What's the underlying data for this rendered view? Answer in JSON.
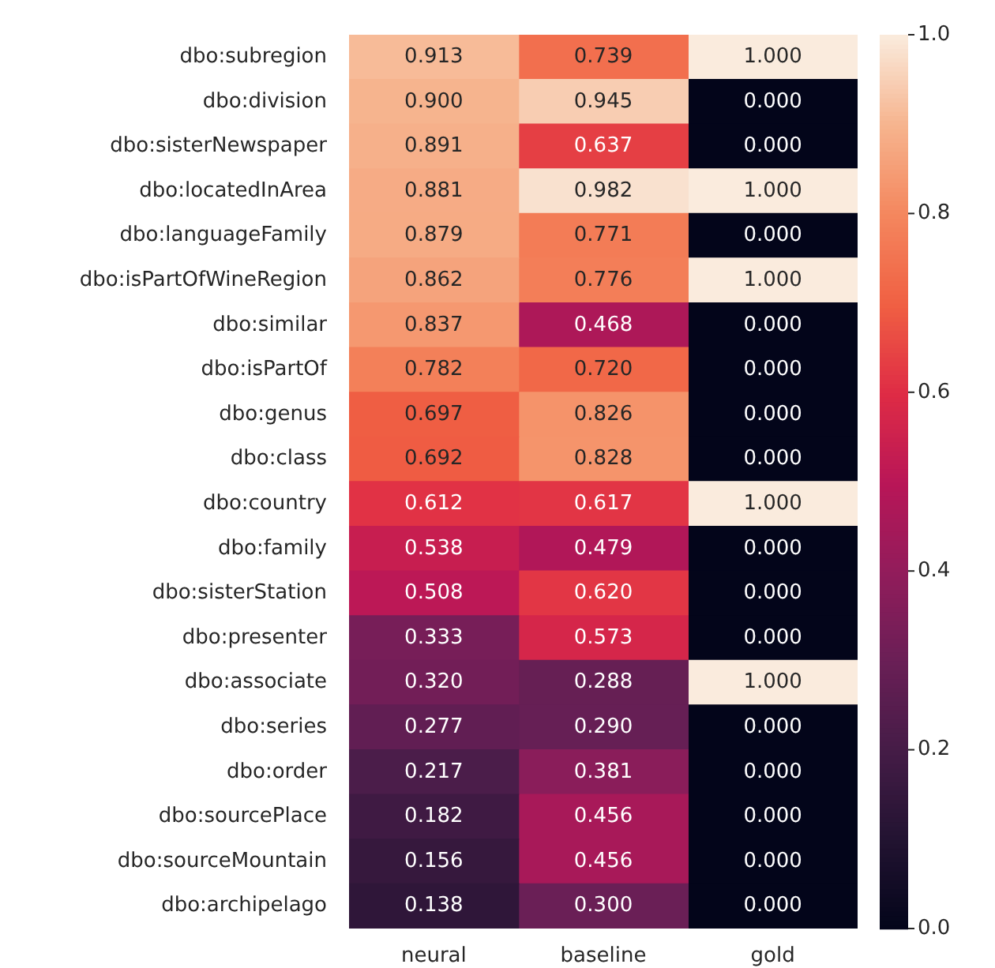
{
  "chart_data": {
    "type": "heatmap",
    "categories": [
      "neural",
      "baseline",
      "gold"
    ],
    "y_categories": [
      "dbo:subregion",
      "dbo:division",
      "dbo:sisterNewspaper",
      "dbo:locatedInArea",
      "dbo:languageFamily",
      "dbo:isPartOfWineRegion",
      "dbo:similar",
      "dbo:isPartOf",
      "dbo:genus",
      "dbo:class",
      "dbo:country",
      "dbo:family",
      "dbo:sisterStation",
      "dbo:presenter",
      "dbo:associate",
      "dbo:series",
      "dbo:order",
      "dbo:sourcePlace",
      "dbo:sourceMountain",
      "dbo:archipelago"
    ],
    "cells": [
      [
        0.913,
        0.739,
        1
      ],
      [
        0.9,
        0.945,
        0
      ],
      [
        0.891,
        0.637,
        0
      ],
      [
        0.881,
        0.982,
        1
      ],
      [
        0.879,
        0.771,
        0
      ],
      [
        0.862,
        0.776,
        1
      ],
      [
        0.837,
        0.468,
        0
      ],
      [
        0.782,
        0.72,
        0
      ],
      [
        0.697,
        0.826,
        0
      ],
      [
        0.692,
        0.828,
        0
      ],
      [
        0.612,
        0.617,
        1
      ],
      [
        0.538,
        0.479,
        0
      ],
      [
        0.508,
        0.62,
        0
      ],
      [
        0.333,
        0.573,
        0
      ],
      [
        0.32,
        0.288,
        1
      ],
      [
        0.277,
        0.29,
        0
      ],
      [
        0.217,
        0.381,
        0
      ],
      [
        0.182,
        0.456,
        0
      ],
      [
        0.156,
        0.456,
        0
      ],
      [
        0.138,
        0.3,
        0
      ]
    ],
    "cell_labels": [
      [
        "0.913",
        "0.739",
        "1.000"
      ],
      [
        "0.900",
        "0.945",
        "0.000"
      ],
      [
        "0.891",
        "0.637",
        "0.000"
      ],
      [
        "0.881",
        "0.982",
        "1.000"
      ],
      [
        "0.879",
        "0.771",
        "0.000"
      ],
      [
        "0.862",
        "0.776",
        "1.000"
      ],
      [
        "0.837",
        "0.468",
        "0.000"
      ],
      [
        "0.782",
        "0.720",
        "0.000"
      ],
      [
        "0.697",
        "0.826",
        "0.000"
      ],
      [
        "0.692",
        "0.828",
        "0.000"
      ],
      [
        "0.612",
        "0.617",
        "1.000"
      ],
      [
        "0.538",
        "0.479",
        "0.000"
      ],
      [
        "0.508",
        "0.620",
        "0.000"
      ],
      [
        "0.333",
        "0.573",
        "0.000"
      ],
      [
        "0.320",
        "0.288",
        "1.000"
      ],
      [
        "0.277",
        "0.290",
        "0.000"
      ],
      [
        "0.217",
        "0.381",
        "0.000"
      ],
      [
        "0.182",
        "0.456",
        "0.000"
      ],
      [
        "0.156",
        "0.456",
        "0.000"
      ],
      [
        "0.138",
        "0.300",
        "0.000"
      ]
    ],
    "clim": [
      0,
      1
    ],
    "cticks": [
      {
        "value": 0,
        "label": "0.0"
      },
      {
        "value": 0.2,
        "label": "0.2"
      },
      {
        "value": 0.4,
        "label": "0.4"
      },
      {
        "value": 0.6,
        "label": "0.6"
      },
      {
        "value": 0.8,
        "label": "0.8"
      },
      {
        "value": 1,
        "label": "1.0"
      }
    ]
  }
}
